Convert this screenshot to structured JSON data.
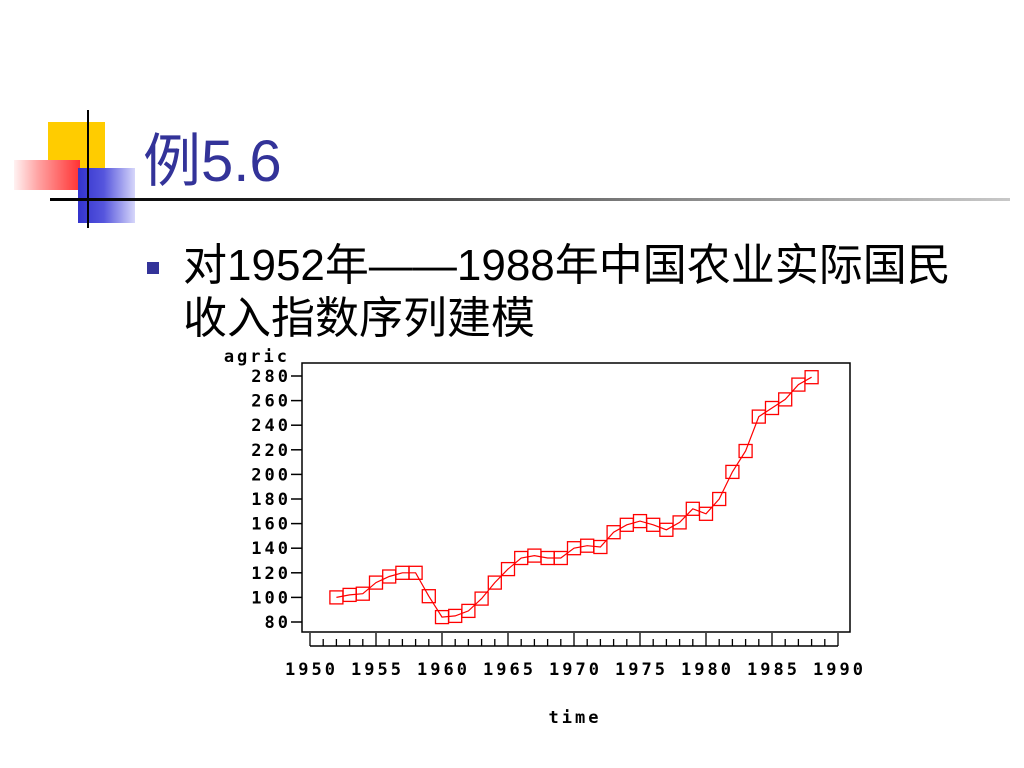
{
  "slide": {
    "title": "例5.6",
    "bullet_lines": [
      "对1952年——1988年中国农业实际国民",
      "收入指数序列建模"
    ]
  },
  "colors": {
    "title": "#333399",
    "bullet_marker": "#333399",
    "decor_yellow": "#FFCC00",
    "decor_red": "#FF3333",
    "decor_blue": "#3333CC"
  },
  "chart_data": {
    "type": "line",
    "xlabel": "time",
    "ylabel": "agric",
    "x": [
      1952,
      1953,
      1954,
      1955,
      1956,
      1957,
      1958,
      1959,
      1960,
      1961,
      1962,
      1963,
      1964,
      1965,
      1966,
      1967,
      1968,
      1969,
      1970,
      1971,
      1972,
      1973,
      1974,
      1975,
      1976,
      1977,
      1978,
      1979,
      1980,
      1981,
      1982,
      1983,
      1984,
      1985,
      1986,
      1987,
      1988
    ],
    "series": [
      {
        "values": [
          100,
          102,
          103,
          112,
          117,
          120,
          120,
          101,
          84,
          85,
          89,
          99,
          112,
          123,
          132,
          134,
          132,
          132,
          140,
          142,
          141,
          153,
          159,
          162,
          159,
          155,
          161,
          172,
          168,
          180,
          202,
          219,
          247,
          254,
          261,
          273,
          279
        ],
        "color": "#FF0000",
        "marker": "square"
      }
    ],
    "xlim": [
      1950,
      1990
    ],
    "ylim": [
      80,
      280
    ],
    "xticks": [
      1950,
      1955,
      1960,
      1965,
      1970,
      1975,
      1980,
      1985,
      1990
    ],
    "x_minor_tick_step": 1,
    "yticks": [
      80,
      100,
      120,
      140,
      160,
      180,
      200,
      220,
      240,
      260,
      280
    ],
    "grid": false,
    "legend": "none"
  }
}
